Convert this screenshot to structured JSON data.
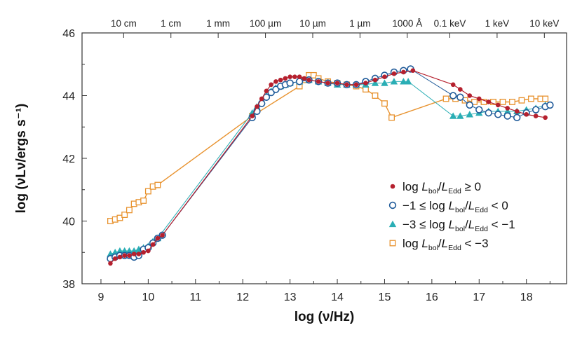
{
  "chart_data": {
    "type": "line",
    "title": "",
    "xlabel": "log (ν/Hz)",
    "ylabel": "log (νLν/ergs s⁻¹)",
    "xlim": [
      8.6,
      18.85
    ],
    "ylim": [
      38,
      46
    ],
    "xticks": [
      9,
      10,
      11,
      12,
      13,
      14,
      15,
      16,
      17,
      18
    ],
    "yticks": [
      38,
      40,
      42,
      44,
      46
    ],
    "top_axis": {
      "labels": [
        "10 cm",
        "1 cm",
        "1 mm",
        "100 µm",
        "10 µm",
        "1 µm",
        "1000 Å",
        "0.1 keV",
        "1 keV",
        "10 keV"
      ],
      "positions": [
        9.48,
        10.48,
        11.48,
        12.48,
        13.48,
        14.48,
        15.48,
        16.38,
        17.38,
        18.38
      ]
    },
    "legend_position": "lower-right",
    "series": [
      {
        "name": "log Lbol/LEdd ≥ 0",
        "legend": {
          "pre": "log ",
          "l1": "L",
          "s1": "bol",
          "mid": "/",
          "l2": "L",
          "s2": "Edd",
          "post": " ≥ 0"
        },
        "color": "#b5202e",
        "marker": "dot",
        "line_width": 1.2,
        "points": [
          [
            9.2,
            38.65
          ],
          [
            9.3,
            38.8
          ],
          [
            9.4,
            38.85
          ],
          [
            9.5,
            38.9
          ],
          [
            9.6,
            38.9
          ],
          [
            9.7,
            38.95
          ],
          [
            9.8,
            38.95
          ],
          [
            9.9,
            39.0
          ],
          [
            10.0,
            39.05
          ],
          [
            10.1,
            39.25
          ],
          [
            10.2,
            39.45
          ],
          [
            10.3,
            39.55
          ],
          [
            12.2,
            43.35
          ],
          [
            12.3,
            43.65
          ],
          [
            12.4,
            43.9
          ],
          [
            12.5,
            44.15
          ],
          [
            12.6,
            44.35
          ],
          [
            12.7,
            44.45
          ],
          [
            12.8,
            44.5
          ],
          [
            12.9,
            44.55
          ],
          [
            13.0,
            44.6
          ],
          [
            13.1,
            44.6
          ],
          [
            13.2,
            44.6
          ],
          [
            13.3,
            44.55
          ],
          [
            13.4,
            44.5
          ],
          [
            13.6,
            44.45
          ],
          [
            13.8,
            44.4
          ],
          [
            14.0,
            44.4
          ],
          [
            14.2,
            44.35
          ],
          [
            14.4,
            44.35
          ],
          [
            14.6,
            44.4
          ],
          [
            14.8,
            44.5
          ],
          [
            15.0,
            44.6
          ],
          [
            15.2,
            44.7
          ],
          [
            15.4,
            44.75
          ],
          [
            15.6,
            44.8
          ],
          [
            16.45,
            44.35
          ],
          [
            16.6,
            44.2
          ],
          [
            16.8,
            44.0
          ],
          [
            17.0,
            43.9
          ],
          [
            17.2,
            43.8
          ],
          [
            17.4,
            43.7
          ],
          [
            17.6,
            43.6
          ],
          [
            17.8,
            43.5
          ],
          [
            18.0,
            43.4
          ],
          [
            18.2,
            43.35
          ],
          [
            18.4,
            43.3
          ]
        ]
      },
      {
        "name": "−1 ≤ log Lbol/LEdd < 0",
        "legend": {
          "pre": "−1 ≤ log ",
          "l1": "L",
          "s1": "bol",
          "mid": "/",
          "l2": "L",
          "s2": "Edd",
          "post": " < 0"
        },
        "color": "#1f5a99",
        "marker": "circle",
        "line_width": 1.0,
        "points": [
          [
            9.2,
            38.8
          ],
          [
            9.3,
            38.85
          ],
          [
            9.4,
            38.9
          ],
          [
            9.5,
            38.9
          ],
          [
            9.6,
            38.9
          ],
          [
            9.7,
            38.85
          ],
          [
            9.8,
            38.9
          ],
          [
            9.9,
            39.1
          ],
          [
            10.0,
            39.15
          ],
          [
            10.1,
            39.3
          ],
          [
            10.2,
            39.45
          ],
          [
            10.3,
            39.55
          ],
          [
            12.2,
            43.3
          ],
          [
            12.3,
            43.5
          ],
          [
            12.4,
            43.75
          ],
          [
            12.5,
            43.95
          ],
          [
            12.6,
            44.1
          ],
          [
            12.7,
            44.2
          ],
          [
            12.8,
            44.3
          ],
          [
            12.9,
            44.35
          ],
          [
            13.0,
            44.4
          ],
          [
            13.2,
            44.45
          ],
          [
            13.4,
            44.5
          ],
          [
            13.6,
            44.45
          ],
          [
            13.8,
            44.4
          ],
          [
            14.0,
            44.4
          ],
          [
            14.2,
            44.35
          ],
          [
            14.4,
            44.35
          ],
          [
            14.6,
            44.45
          ],
          [
            14.8,
            44.55
          ],
          [
            15.0,
            44.65
          ],
          [
            15.2,
            44.75
          ],
          [
            15.4,
            44.8
          ],
          [
            15.55,
            44.85
          ],
          [
            16.45,
            44.0
          ],
          [
            16.6,
            43.95
          ],
          [
            16.8,
            43.7
          ],
          [
            17.0,
            43.55
          ],
          [
            17.2,
            43.45
          ],
          [
            17.4,
            43.4
          ],
          [
            17.6,
            43.35
          ],
          [
            17.8,
            43.3
          ],
          [
            18.0,
            43.45
          ],
          [
            18.2,
            43.55
          ],
          [
            18.4,
            43.65
          ],
          [
            18.5,
            43.7
          ]
        ]
      },
      {
        "name": "−3 ≤ log Lbol/LEdd < −1",
        "legend": {
          "pre": "−3 ≤ log ",
          "l1": "L",
          "s1": "bol",
          "mid": "/",
          "l2": "L",
          "s2": "Edd",
          "post": " < −1"
        },
        "color": "#2aaeb5",
        "marker": "triangle",
        "line_width": 1.0,
        "points": [
          [
            9.2,
            38.95
          ],
          [
            9.3,
            39.0
          ],
          [
            9.4,
            39.05
          ],
          [
            9.5,
            39.05
          ],
          [
            9.6,
            39.05
          ],
          [
            9.7,
            39.05
          ],
          [
            9.8,
            39.1
          ],
          [
            9.9,
            39.15
          ],
          [
            10.0,
            39.2
          ],
          [
            10.1,
            39.35
          ],
          [
            10.2,
            39.45
          ],
          [
            12.2,
            43.45
          ],
          [
            12.3,
            43.65
          ],
          [
            12.4,
            43.85
          ],
          [
            12.5,
            44.0
          ],
          [
            12.6,
            44.15
          ],
          [
            12.7,
            44.25
          ],
          [
            12.8,
            44.3
          ],
          [
            12.9,
            44.35
          ],
          [
            13.0,
            44.4
          ],
          [
            13.2,
            44.45
          ],
          [
            13.4,
            44.5
          ],
          [
            13.6,
            44.45
          ],
          [
            13.8,
            44.4
          ],
          [
            14.0,
            44.35
          ],
          [
            14.2,
            44.35
          ],
          [
            14.4,
            44.35
          ],
          [
            14.6,
            44.35
          ],
          [
            14.8,
            44.4
          ],
          [
            15.0,
            44.4
          ],
          [
            15.2,
            44.45
          ],
          [
            15.4,
            44.45
          ],
          [
            15.5,
            44.45
          ],
          [
            16.45,
            43.35
          ],
          [
            16.6,
            43.35
          ],
          [
            16.8,
            43.4
          ],
          [
            17.0,
            43.45
          ],
          [
            17.2,
            43.5
          ],
          [
            17.4,
            43.5
          ],
          [
            17.6,
            43.5
          ],
          [
            17.8,
            43.5
          ],
          [
            18.0,
            43.55
          ],
          [
            18.2,
            43.6
          ],
          [
            18.4,
            43.7
          ]
        ]
      },
      {
        "name": "log Lbol/LEdd < −3",
        "legend": {
          "pre": "log ",
          "l1": "L",
          "s1": "bol",
          "mid": "/",
          "l2": "L",
          "s2": "Edd",
          "post": " < −3"
        },
        "color": "#e8922e",
        "marker": "square",
        "line_width": 1.4,
        "points": [
          [
            9.2,
            40.0
          ],
          [
            9.3,
            40.05
          ],
          [
            9.4,
            40.1
          ],
          [
            9.5,
            40.2
          ],
          [
            9.6,
            40.35
          ],
          [
            9.7,
            40.55
          ],
          [
            9.8,
            40.6
          ],
          [
            9.9,
            40.65
          ],
          [
            10.0,
            40.95
          ],
          [
            10.1,
            41.1
          ],
          [
            10.2,
            41.15
          ],
          [
            12.2,
            43.35
          ],
          [
            13.2,
            44.3
          ],
          [
            13.3,
            44.5
          ],
          [
            13.4,
            44.65
          ],
          [
            13.5,
            44.65
          ],
          [
            13.6,
            44.55
          ],
          [
            13.8,
            44.45
          ],
          [
            14.0,
            44.4
          ],
          [
            14.2,
            44.35
          ],
          [
            14.4,
            44.3
          ],
          [
            14.6,
            44.2
          ],
          [
            14.8,
            44.0
          ],
          [
            15.0,
            43.75
          ],
          [
            15.15,
            43.3
          ],
          [
            16.3,
            43.9
          ],
          [
            16.5,
            43.9
          ],
          [
            16.7,
            43.85
          ],
          [
            16.9,
            43.8
          ],
          [
            17.1,
            43.8
          ],
          [
            17.3,
            43.8
          ],
          [
            17.5,
            43.8
          ],
          [
            17.7,
            43.8
          ],
          [
            17.9,
            43.85
          ],
          [
            18.1,
            43.9
          ],
          [
            18.3,
            43.9
          ],
          [
            18.4,
            43.9
          ]
        ]
      }
    ]
  }
}
